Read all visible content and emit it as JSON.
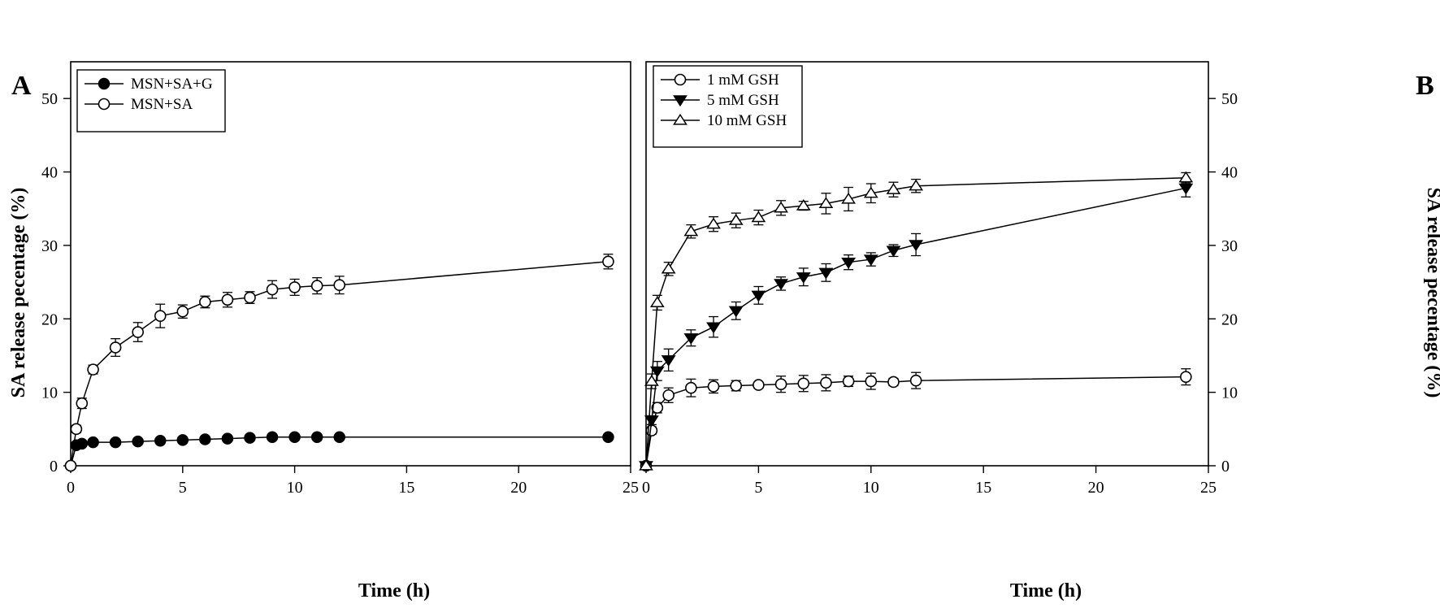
{
  "figure": {
    "panels": [
      {
        "letter": "A",
        "xlabel": "Time (h)",
        "ylabel": "SA release pecentage (%)"
      },
      {
        "letter": "B",
        "xlabel": "Time (h)",
        "ylabel": "SA release pecentage (%)"
      }
    ]
  },
  "chart_data": [
    {
      "type": "line",
      "panel": "A",
      "title": "",
      "xlabel": "Time (h)",
      "ylabel": "SA release pecentage (%)",
      "xlim": [
        0,
        25
      ],
      "ylim": [
        0,
        55
      ],
      "xticks": [
        0,
        5,
        10,
        15,
        20,
        25
      ],
      "yticks": [
        0,
        10,
        20,
        30,
        40,
        50
      ],
      "grid": false,
      "legend_position": "top-left",
      "series": [
        {
          "name": "MSN+SA+G",
          "marker": "filled-circle",
          "color": "#000000",
          "x": [
            0,
            0.25,
            0.5,
            1,
            2,
            3,
            4,
            5,
            6,
            7,
            8,
            9,
            10,
            11,
            12,
            24
          ],
          "y": [
            0,
            2.8,
            3.0,
            3.2,
            3.2,
            3.3,
            3.4,
            3.5,
            3.6,
            3.7,
            3.8,
            3.9,
            3.9,
            3.9,
            3.9,
            3.9
          ],
          "err": [
            0,
            0.2,
            0.2,
            0.2,
            0.2,
            0.2,
            0.2,
            0.2,
            0.2,
            0.2,
            0.2,
            0.2,
            0.2,
            0.2,
            0.2,
            0.2
          ]
        },
        {
          "name": "MSN+SA",
          "marker": "open-circle",
          "color": "#000000",
          "x": [
            0,
            0.25,
            0.5,
            1,
            2,
            3,
            4,
            5,
            6,
            7,
            8,
            9,
            10,
            11,
            12,
            24
          ],
          "y": [
            0,
            5.0,
            8.5,
            13.1,
            16.1,
            18.2,
            20.4,
            21.0,
            22.3,
            22.6,
            22.9,
            24.0,
            24.3,
            24.5,
            24.6,
            27.8
          ],
          "err": [
            0,
            0.5,
            0.7,
            0.6,
            1.2,
            1.3,
            1.6,
            0.9,
            0.8,
            1.0,
            0.8,
            1.2,
            1.1,
            1.1,
            1.2,
            1.0
          ]
        }
      ]
    },
    {
      "type": "line",
      "panel": "B",
      "title": "",
      "xlabel": "Time (h)",
      "ylabel": "SA release pecentage (%)",
      "xlim": [
        0,
        25
      ],
      "ylim": [
        0,
        55
      ],
      "xticks": [
        0,
        5,
        10,
        15,
        20,
        25
      ],
      "yticks": [
        0,
        10,
        20,
        30,
        40,
        50
      ],
      "y_axis_side": "right",
      "grid": false,
      "legend_position": "top-left",
      "series": [
        {
          "name": "1 mM GSH",
          "marker": "open-circle",
          "color": "#000000",
          "x": [
            0,
            0.25,
            0.5,
            1,
            2,
            3,
            4,
            5,
            6,
            7,
            8,
            9,
            10,
            11,
            12,
            24
          ],
          "y": [
            0,
            4.8,
            7.9,
            9.6,
            10.6,
            10.8,
            10.9,
            11.0,
            11.1,
            11.2,
            11.3,
            11.5,
            11.5,
            11.4,
            11.6,
            12.1
          ],
          "err": [
            0,
            0.5,
            0.7,
            1.0,
            1.2,
            0.9,
            0.7,
            0.4,
            1.1,
            1.1,
            1.1,
            0.7,
            1.1,
            0.5,
            1.1,
            1.1
          ]
        },
        {
          "name": "5 mM GSH",
          "marker": "filled-triangle-down",
          "color": "#000000",
          "x": [
            0,
            0.25,
            0.5,
            1,
            2,
            3,
            4,
            5,
            6,
            7,
            8,
            9,
            10,
            11,
            12,
            24
          ],
          "y": [
            0,
            6.2,
            12.9,
            14.4,
            17.4,
            18.9,
            21.1,
            23.2,
            24.8,
            25.7,
            26.3,
            27.7,
            28.1,
            29.3,
            30.1,
            37.8
          ],
          "err": [
            0,
            0.6,
            1.3,
            1.5,
            1.1,
            1.4,
            1.2,
            1.2,
            0.9,
            1.2,
            1.2,
            1.0,
            0.9,
            0.8,
            1.5,
            1.2
          ]
        },
        {
          "name": "10 mM GSH",
          "marker": "open-triangle-up",
          "color": "#000000",
          "x": [
            0,
            0.25,
            0.5,
            1,
            2,
            3,
            4,
            5,
            6,
            7,
            8,
            9,
            10,
            11,
            12,
            24
          ],
          "y": [
            0,
            11.5,
            22.2,
            26.8,
            31.9,
            32.9,
            33.4,
            33.8,
            35.1,
            35.4,
            35.7,
            36.3,
            37.1,
            37.6,
            38.1,
            39.2
          ],
          "err": [
            0,
            1.0,
            1.0,
            0.9,
            0.9,
            1.0,
            1.0,
            1.0,
            1.0,
            0.6,
            1.4,
            1.6,
            1.3,
            1.0,
            0.9,
            0.7
          ]
        }
      ]
    }
  ]
}
